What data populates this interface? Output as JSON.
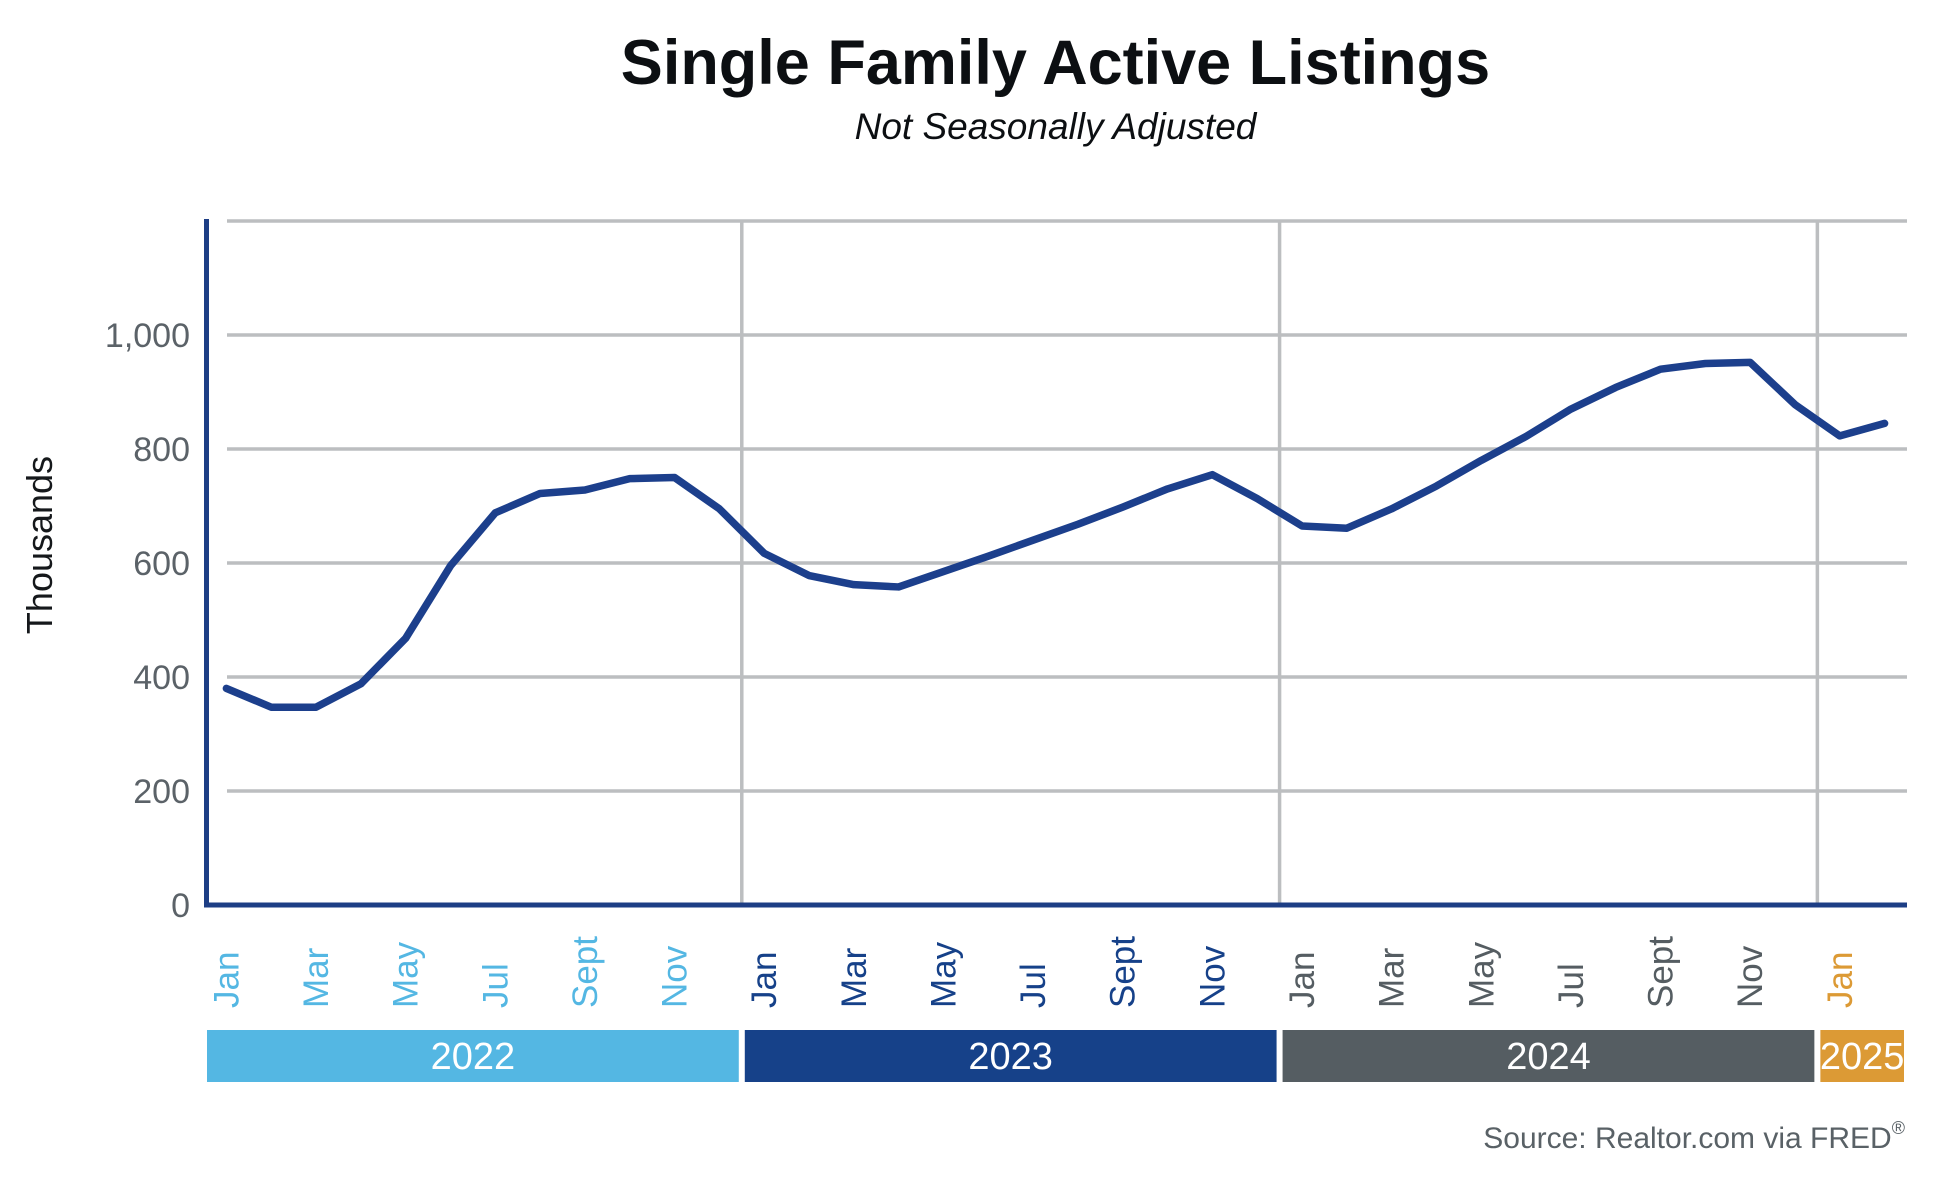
{
  "header": {
    "title": "Single Family Active Listings",
    "subtitle": "Not Seasonally Adjusted"
  },
  "y_axis": {
    "title": "Thousands",
    "tick_labels": [
      "0",
      "200",
      "400",
      "600",
      "800",
      "1,000"
    ],
    "tick_values": [
      0,
      200,
      400,
      600,
      800,
      1000
    ],
    "max_value": 1200,
    "tick_color": "#5b6268"
  },
  "x_axis": {
    "years": [
      {
        "label": "2022",
        "color": "#54b7e3",
        "months": [
          "Jan",
          "Mar",
          "May",
          "Jul",
          "Sept",
          "Nov"
        ]
      },
      {
        "label": "2023",
        "color": "#164189",
        "months": [
          "Jan",
          "Mar",
          "May",
          "Jul",
          "Sept",
          "Nov"
        ]
      },
      {
        "label": "2024",
        "color": "#555d62",
        "months": [
          "Jan",
          "Mar",
          "May",
          "Jul",
          "Sept",
          "Nov"
        ]
      },
      {
        "label": "2025",
        "color": "#dc9a35",
        "months": [
          "Jan"
        ]
      }
    ]
  },
  "source": {
    "text": "Source: Realtor.com via FRED",
    "registered_mark": "®"
  },
  "colors": {
    "line": "#1c3f8c",
    "axis": "#1d3e85",
    "gridline": "#bcbec0",
    "band_text": "#ffffff",
    "title_text": "#0c0f12",
    "source_text": "#596166"
  },
  "chart_data": {
    "type": "line",
    "title": "Single Family Active Listings",
    "subtitle": "Not Seasonally Adjusted",
    "ylabel": "Thousands",
    "ylim": [
      0,
      1200
    ],
    "grid": "on",
    "legend": "none",
    "values_unit": "thousands of listings",
    "categories": [
      "Jan 2022",
      "Feb 2022",
      "Mar 2022",
      "Apr 2022",
      "May 2022",
      "Jun 2022",
      "Jul 2022",
      "Aug 2022",
      "Sep 2022",
      "Oct 2022",
      "Nov 2022",
      "Dec 2022",
      "Jan 2023",
      "Feb 2023",
      "Mar 2023",
      "Apr 2023",
      "May 2023",
      "Jun 2023",
      "Jul 2023",
      "Aug 2023",
      "Sep 2023",
      "Oct 2023",
      "Nov 2023",
      "Dec 2023",
      "Jan 2024",
      "Feb 2024",
      "Mar 2024",
      "Apr 2024",
      "May 2024",
      "Jun 2024",
      "Jul 2024",
      "Aug 2024",
      "Sep 2024",
      "Oct 2024",
      "Nov 2024",
      "Dec 2024",
      "Jan 2025",
      "Feb 2025"
    ],
    "values": [
      380,
      347,
      347,
      388,
      468,
      595,
      688,
      722,
      728,
      748,
      750,
      695,
      617,
      578,
      562,
      558,
      585,
      612,
      640,
      668,
      698,
      730,
      755,
      713,
      665,
      661,
      695,
      735,
      780,
      822,
      870,
      908,
      940,
      950,
      952,
      878,
      823,
      845
    ]
  }
}
